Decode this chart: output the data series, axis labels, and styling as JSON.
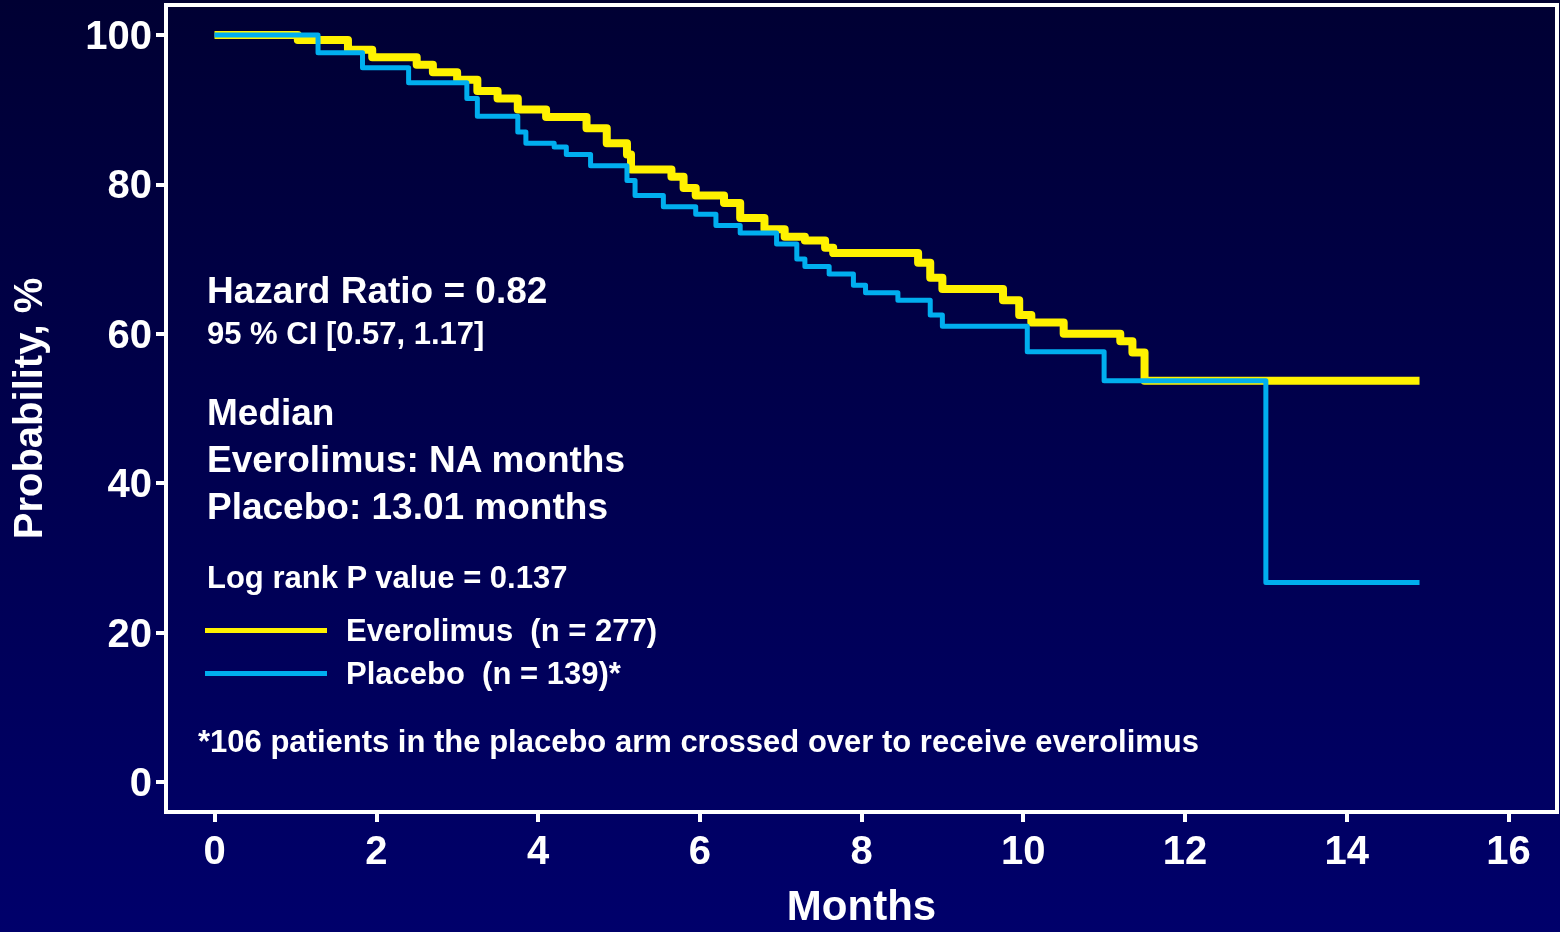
{
  "chart_data": {
    "type": "step",
    "xlabel": "Months",
    "ylabel": "Probability, %",
    "xlim": [
      -0.6,
      16.6
    ],
    "ylim": [
      -4,
      104
    ],
    "xticks": [
      0,
      2,
      4,
      6,
      8,
      10,
      12,
      14,
      16
    ],
    "yticks": [
      0,
      20,
      40,
      60,
      80,
      100
    ],
    "legend": "bottom left",
    "grid": false,
    "annotations": [
      "Hazard Ratio = 0.82",
      "95 % CI [0.57, 1.17]",
      "Median",
      "Everolimus: NA months",
      "Placebo: 13.01 months",
      "Log rank P value = 0.137",
      "*106 patients in the placebo arm crossed over to receive everolimus"
    ],
    "series": [
      {
        "name": "Everolimus  (n = 277)",
        "color": "#fff200",
        "x": [
          0,
          1.03,
          1.65,
          1.95,
          2.5,
          2.7,
          3.0,
          3.25,
          3.5,
          3.75,
          4.1,
          4.6,
          4.85,
          5.1,
          5.15,
          5.65,
          5.8,
          5.95,
          6.3,
          6.5,
          6.8,
          7.05,
          7.3,
          7.55,
          7.65,
          8.7,
          8.85,
          9.0,
          9.75,
          9.95,
          10.1,
          10.5,
          11.2,
          11.35,
          11.5,
          14.9
        ],
        "values": [
          100,
          99.3,
          98,
          97,
          96,
          95,
          94,
          92.5,
          91.5,
          90,
          89,
          87.5,
          85.5,
          84,
          82,
          81,
          79.5,
          78.5,
          77.5,
          75.5,
          74,
          73,
          72.5,
          71.5,
          70.8,
          69.5,
          67.5,
          66,
          64.5,
          62.5,
          61.5,
          60,
          59,
          57.5,
          53.7,
          53.7
        ]
      },
      {
        "name": "Placebo  (n = 139)*",
        "color": "#00aeef",
        "x": [
          0,
          1.28,
          1.83,
          2.4,
          3.12,
          3.25,
          3.75,
          3.85,
          4.2,
          4.35,
          4.65,
          5.1,
          5.2,
          5.55,
          5.95,
          6.2,
          6.5,
          6.95,
          7.2,
          7.3,
          7.6,
          7.9,
          8.05,
          8.45,
          8.85,
          9.0,
          10.05,
          11.0,
          13.0,
          14.9
        ],
        "values": [
          100,
          97.6,
          95.6,
          93.6,
          91.5,
          89.1,
          87,
          85.5,
          85,
          84,
          82.5,
          80.5,
          78.5,
          77,
          76,
          74.5,
          73.5,
          72,
          70,
          69,
          68,
          66.5,
          65.5,
          64.5,
          62.5,
          61,
          57.6,
          53.7,
          26.7,
          26.7
        ]
      }
    ]
  }
}
